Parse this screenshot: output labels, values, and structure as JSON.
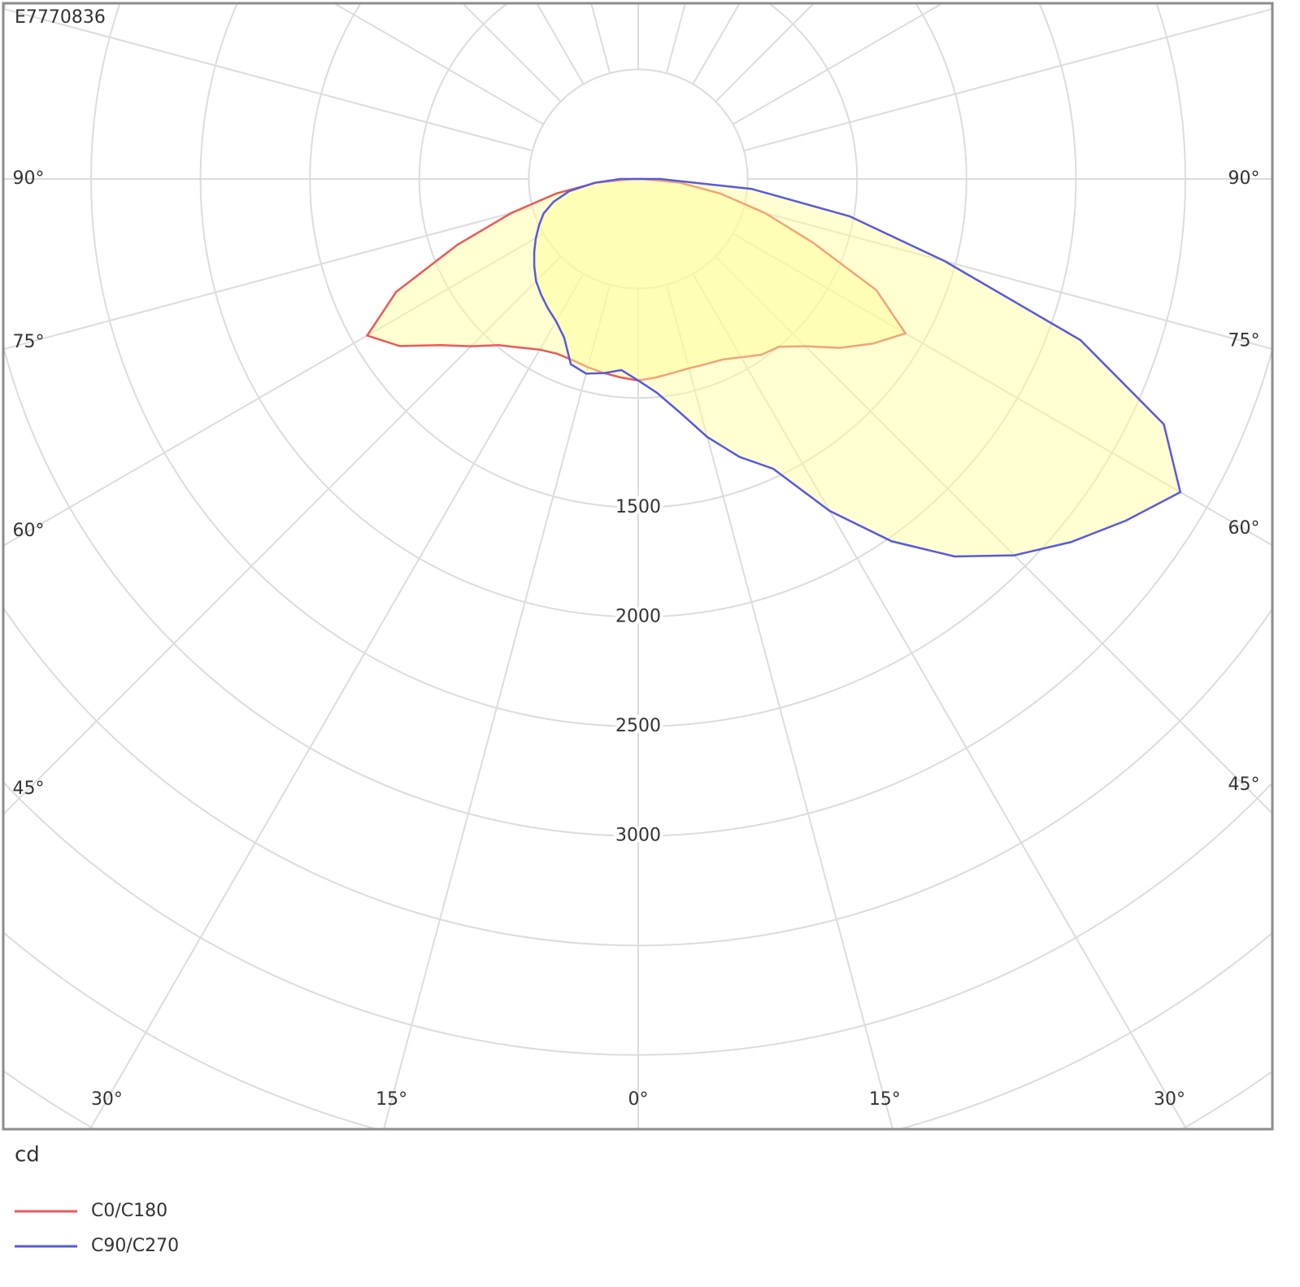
{
  "chart_data": {
    "type": "polar",
    "title": "E7770836",
    "unit_label": "cd",
    "theta": [
      -90,
      -85,
      -80,
      -75,
      -70,
      -65,
      -60,
      -55,
      -50,
      -45,
      -40,
      -35,
      -30,
      -25,
      -20,
      -15,
      -10,
      -5,
      0,
      5,
      10,
      15,
      20,
      25,
      30,
      35,
      40,
      45,
      50,
      55,
      60,
      65,
      70,
      75,
      80,
      85,
      90
    ],
    "series": [
      {
        "name": "C0/C180",
        "color": "#e85a5a",
        "fill": "#ffff99",
        "values": [
          20,
          190,
          380,
          600,
          880,
          1220,
          1430,
          1330,
          1180,
          1080,
          990,
          940,
          900,
          880,
          880,
          890,
          900,
          910,
          920,
          910,
          900,
          895,
          900,
          910,
          940,
          980,
          1000,
          1080,
          1200,
          1310,
          1410,
          1200,
          850,
          600,
          380,
          190,
          20
        ]
      },
      {
        "name": "C90/C270",
        "color": "#5858e0",
        "fill": "#ffff99",
        "values": [
          80,
          200,
          320,
          400,
          460,
          500,
          540,
          580,
          620,
          660,
          690,
          720,
          750,
          800,
          900,
          920,
          900,
          876,
          920,
          980,
          1080,
          1220,
          1350,
          1460,
          1750,
          2020,
          2250,
          2430,
          2580,
          2720,
          2860,
          2650,
          2150,
          1450,
          980,
          520,
          100
        ]
      }
    ],
    "rlim": [
      0,
      5000
    ],
    "rgrid": [
      500,
      1000,
      1500,
      2000,
      2500,
      3000,
      3500,
      4000,
      4500,
      5000
    ],
    "rticks": [
      1500,
      2000,
      2500,
      3000
    ],
    "thetagrid": [
      -165,
      -150,
      -135,
      -120,
      -105,
      -90,
      -75,
      -60,
      -45,
      -30,
      -15,
      0,
      15,
      30,
      45,
      60,
      75,
      90,
      105,
      120,
      135,
      150,
      165,
      180
    ],
    "thetaticks": [
      {
        "value": -90,
        "label": "90°"
      },
      {
        "value": -75,
        "label": "75°"
      },
      {
        "value": -60,
        "label": "60°"
      },
      {
        "value": -45,
        "label": "45°"
      },
      {
        "value": -30,
        "label": "30°"
      },
      {
        "value": -15,
        "label": "15°"
      },
      {
        "value": 0,
        "label": "0°"
      },
      {
        "value": 15,
        "label": "15°"
      },
      {
        "value": 30,
        "label": "30°"
      },
      {
        "value": 45,
        "label": "45°"
      },
      {
        "value": 60,
        "label": "60°"
      },
      {
        "value": 75,
        "label": "75°"
      },
      {
        "value": 90,
        "label": "90°"
      }
    ],
    "grid": true
  }
}
